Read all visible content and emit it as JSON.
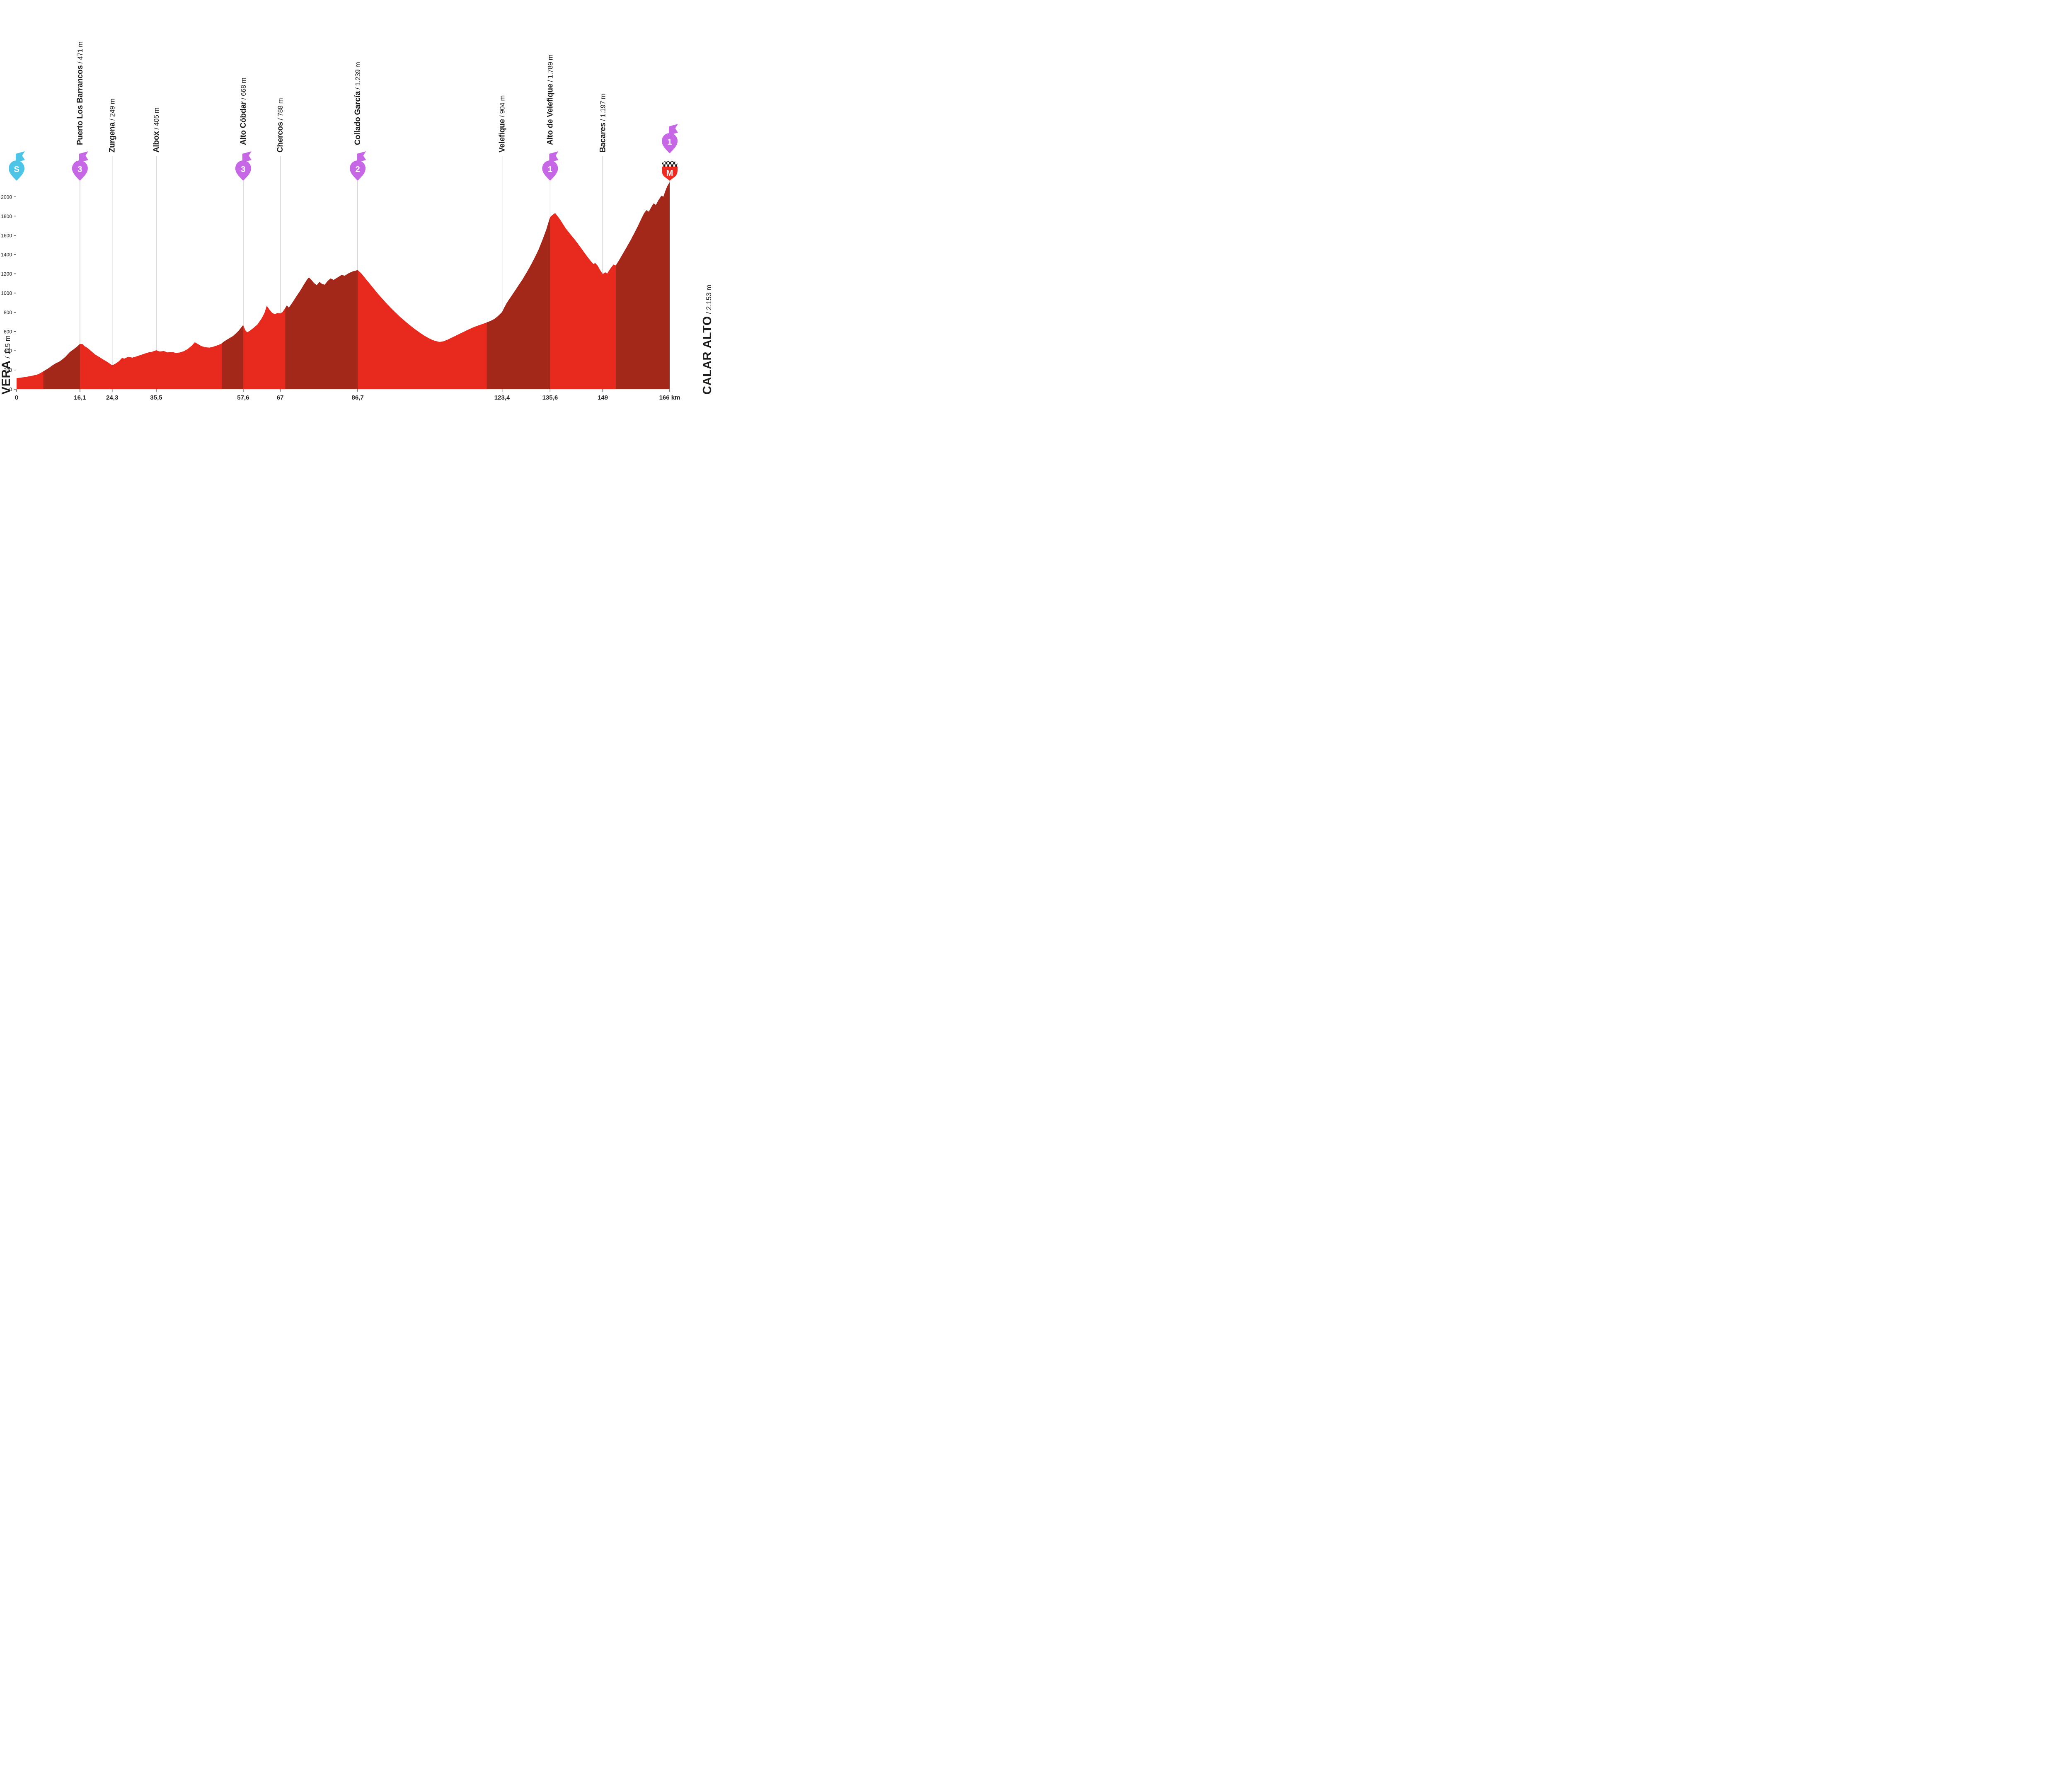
{
  "endpoints": {
    "start": {
      "name": "VERA",
      "elevation": "115 m"
    },
    "finish": {
      "name": "CALAR ALTO",
      "elevation": "2.153 m"
    }
  },
  "chart_data": {
    "type": "area",
    "x_unit": "km",
    "xlim": [
      0,
      166
    ],
    "ylim": [
      0,
      2200
    ],
    "y_ticks": [
      0,
      200,
      400,
      600,
      800,
      1000,
      1200,
      1400,
      1600,
      1800,
      2000
    ],
    "x_ticks": [
      {
        "km": 0,
        "label": "0"
      },
      {
        "km": 16.1,
        "label": "16,1"
      },
      {
        "km": 24.3,
        "label": "24,3"
      },
      {
        "km": 35.5,
        "label": "35,5"
      },
      {
        "km": 57.6,
        "label": "57,6"
      },
      {
        "km": 67,
        "label": "67"
      },
      {
        "km": 86.7,
        "label": "86,7"
      },
      {
        "km": 123.4,
        "label": "123,4"
      },
      {
        "km": 135.6,
        "label": "135,6"
      },
      {
        "km": 149,
        "label": "149"
      },
      {
        "km": 166,
        "label": "166 km"
      }
    ],
    "waypoints": [
      {
        "km": 0,
        "marker": "S",
        "kind": "start"
      },
      {
        "km": 16.1,
        "name": "Puerto Los Barrancos",
        "elevation": "471 m",
        "marker": "3",
        "kind": "cat3"
      },
      {
        "km": 24.3,
        "name": "Zurgena",
        "elevation": "249 m",
        "kind": "town"
      },
      {
        "km": 35.5,
        "name": "Albox",
        "elevation": "405 m",
        "kind": "town"
      },
      {
        "km": 57.6,
        "name": "Alto Cóbdar",
        "elevation": "668 m",
        "marker": "3",
        "kind": "cat3"
      },
      {
        "km": 67,
        "name": "Chercos",
        "elevation": "788 m",
        "kind": "town"
      },
      {
        "km": 86.7,
        "name": "Collado García",
        "elevation": "1.239 m",
        "marker": "2",
        "kind": "cat2"
      },
      {
        "km": 123.4,
        "name": "Velefique",
        "elevation": "904 m",
        "kind": "town"
      },
      {
        "km": 135.6,
        "name": "Alto de Velefique",
        "elevation": "1.789 m",
        "marker": "1",
        "kind": "cat1"
      },
      {
        "km": 149,
        "name": "Bacares",
        "elevation": "1.197 m",
        "kind": "town"
      },
      {
        "km": 166,
        "marker": "1",
        "kind": "cat1_finish",
        "finish_marker": "M"
      }
    ],
    "climb_segments": [
      [
        6.8,
        16.1
      ],
      [
        52.2,
        57.6
      ],
      [
        68.3,
        86.7
      ],
      [
        119.5,
        135.6
      ],
      [
        152.3,
        166
      ]
    ],
    "profile": [
      [
        0,
        115
      ],
      [
        2,
        125
      ],
      [
        4,
        140
      ],
      [
        5.5,
        155
      ],
      [
        7,
        190
      ],
      [
        8,
        215
      ],
      [
        9,
        245
      ],
      [
        10,
        270
      ],
      [
        10.8,
        285
      ],
      [
        11.5,
        305
      ],
      [
        12.5,
        340
      ],
      [
        13.5,
        385
      ],
      [
        14.5,
        415
      ],
      [
        15.3,
        440
      ],
      [
        16.1,
        471
      ],
      [
        16.8,
        468
      ],
      [
        17.2,
        450
      ],
      [
        18,
        430
      ],
      [
        19,
        395
      ],
      [
        20,
        360
      ],
      [
        21,
        335
      ],
      [
        22,
        310
      ],
      [
        23,
        285
      ],
      [
        24.3,
        249
      ],
      [
        25,
        262
      ],
      [
        26,
        290
      ],
      [
        26.8,
        325
      ],
      [
        27.4,
        318
      ],
      [
        28.4,
        338
      ],
      [
        29.4,
        328
      ],
      [
        30.5,
        342
      ],
      [
        31.5,
        355
      ],
      [
        32.5,
        370
      ],
      [
        33.5,
        382
      ],
      [
        34.5,
        390
      ],
      [
        35.5,
        405
      ],
      [
        36.4,
        392
      ],
      [
        37.4,
        397
      ],
      [
        38.4,
        382
      ],
      [
        39.5,
        388
      ],
      [
        40.5,
        377
      ],
      [
        41.5,
        382
      ],
      [
        42.5,
        395
      ],
      [
        43.5,
        418
      ],
      [
        44.5,
        452
      ],
      [
        45.3,
        488
      ],
      [
        46,
        472
      ],
      [
        47,
        448
      ],
      [
        48,
        436
      ],
      [
        49,
        432
      ],
      [
        50,
        442
      ],
      [
        51,
        456
      ],
      [
        52,
        472
      ],
      [
        52.6,
        492
      ],
      [
        53.2,
        508
      ],
      [
        54,
        528
      ],
      [
        55,
        552
      ],
      [
        55.8,
        582
      ],
      [
        56.4,
        606
      ],
      [
        57,
        636
      ],
      [
        57.6,
        668
      ],
      [
        58.1,
        615
      ],
      [
        58.6,
        592
      ],
      [
        59.3,
        608
      ],
      [
        60.2,
        636
      ],
      [
        61.2,
        672
      ],
      [
        62.2,
        730
      ],
      [
        63,
        792
      ],
      [
        63.6,
        868
      ],
      [
        64.2,
        832
      ],
      [
        64.9,
        796
      ],
      [
        65.6,
        780
      ],
      [
        66.3,
        792
      ],
      [
        67,
        788
      ],
      [
        67.6,
        802
      ],
      [
        68.2,
        838
      ],
      [
        68.7,
        872
      ],
      [
        69.2,
        848
      ],
      [
        69.9,
        888
      ],
      [
        70.7,
        938
      ],
      [
        71.5,
        988
      ],
      [
        72.3,
        1038
      ],
      [
        73.1,
        1092
      ],
      [
        73.8,
        1138
      ],
      [
        74.3,
        1162
      ],
      [
        74.9,
        1138
      ],
      [
        75.6,
        1104
      ],
      [
        76.3,
        1082
      ],
      [
        77,
        1116
      ],
      [
        77.6,
        1096
      ],
      [
        78.3,
        1086
      ],
      [
        79,
        1122
      ],
      [
        79.8,
        1152
      ],
      [
        80.6,
        1136
      ],
      [
        81.6,
        1162
      ],
      [
        82.6,
        1188
      ],
      [
        83.4,
        1180
      ],
      [
        84.4,
        1206
      ],
      [
        85.4,
        1224
      ],
      [
        86.7,
        1239
      ],
      [
        87.6,
        1205
      ],
      [
        88.6,
        1155
      ],
      [
        89.6,
        1105
      ],
      [
        90.6,
        1055
      ],
      [
        91.6,
        1005
      ],
      [
        92.6,
        958
      ],
      [
        93.6,
        912
      ],
      [
        94.6,
        868
      ],
      [
        95.6,
        826
      ],
      [
        96.6,
        786
      ],
      [
        97.6,
        748
      ],
      [
        98.6,
        712
      ],
      [
        99.6,
        678
      ],
      [
        100.6,
        645
      ],
      [
        101.6,
        614
      ],
      [
        102.6,
        585
      ],
      [
        103.6,
        558
      ],
      [
        104.6,
        534
      ],
      [
        105.6,
        514
      ],
      [
        106.6,
        500
      ],
      [
        107.5,
        492
      ],
      [
        108.5,
        498
      ],
      [
        109.5,
        514
      ],
      [
        110.5,
        534
      ],
      [
        111.5,
        554
      ],
      [
        112.5,
        574
      ],
      [
        113.5,
        594
      ],
      [
        114.5,
        614
      ],
      [
        115.5,
        633
      ],
      [
        116.5,
        650
      ],
      [
        117.5,
        665
      ],
      [
        118.5,
        679
      ],
      [
        119.5,
        694
      ],
      [
        120.5,
        710
      ],
      [
        121.5,
        732
      ],
      [
        122.4,
        762
      ],
      [
        123.4,
        802
      ],
      [
        124,
        852
      ],
      [
        124.7,
        904
      ],
      [
        125.6,
        958
      ],
      [
        126.6,
        1018
      ],
      [
        127.6,
        1080
      ],
      [
        128.6,
        1142
      ],
      [
        129.6,
        1210
      ],
      [
        130.6,
        1282
      ],
      [
        131.6,
        1360
      ],
      [
        132.6,
        1444
      ],
      [
        133.6,
        1545
      ],
      [
        134.6,
        1655
      ],
      [
        135.6,
        1789
      ],
      [
        136.2,
        1812
      ],
      [
        136.9,
        1832
      ],
      [
        137.5,
        1800
      ],
      [
        138.1,
        1768
      ],
      [
        138.8,
        1722
      ],
      [
        139.6,
        1672
      ],
      [
        140.4,
        1630
      ],
      [
        141.2,
        1590
      ],
      [
        142,
        1550
      ],
      [
        142.8,
        1506
      ],
      [
        143.6,
        1462
      ],
      [
        144.4,
        1416
      ],
      [
        145.2,
        1372
      ],
      [
        146,
        1330
      ],
      [
        146.6,
        1302
      ],
      [
        147.1,
        1312
      ],
      [
        147.7,
        1284
      ],
      [
        148.3,
        1240
      ],
      [
        149,
        1197
      ],
      [
        149.6,
        1216
      ],
      [
        150.1,
        1202
      ],
      [
        150.9,
        1252
      ],
      [
        151.7,
        1296
      ],
      [
        152.3,
        1286
      ],
      [
        153,
        1332
      ],
      [
        154,
        1402
      ],
      [
        155,
        1472
      ],
      [
        156,
        1545
      ],
      [
        157,
        1622
      ],
      [
        158,
        1702
      ],
      [
        158.8,
        1772
      ],
      [
        159.5,
        1830
      ],
      [
        160.1,
        1862
      ],
      [
        160.7,
        1846
      ],
      [
        161.3,
        1892
      ],
      [
        161.9,
        1932
      ],
      [
        162.5,
        1916
      ],
      [
        163.1,
        1962
      ],
      [
        163.9,
        2012
      ],
      [
        164.4,
        2002
      ],
      [
        164.9,
        2062
      ],
      [
        165.4,
        2112
      ],
      [
        166,
        2153
      ]
    ],
    "colors": {
      "profile": "#e8291d",
      "climb": "#a3281a",
      "cat_marker": "#c667e6",
      "start_marker": "#4ec4e6",
      "finish_marker": "#ed2b21",
      "line": "#b9b9b9",
      "text": "#1d1d1b"
    }
  }
}
